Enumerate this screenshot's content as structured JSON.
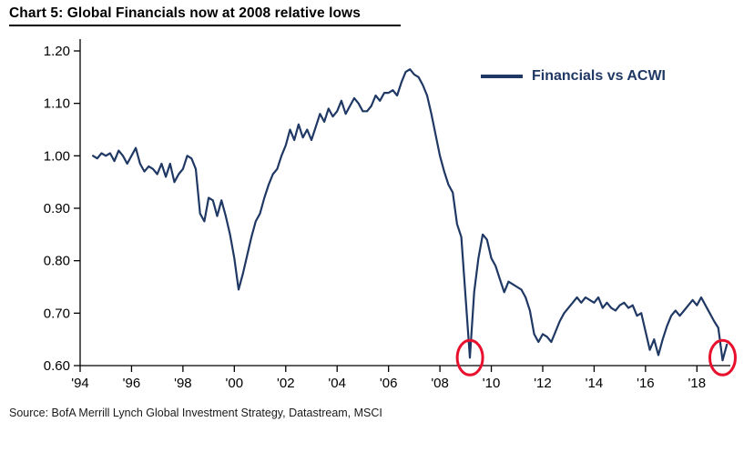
{
  "chart_data": {
    "type": "line",
    "title": "Chart 5: Global Financials now at 2008 relative lows",
    "source": "Source:  BofA Merrill Lynch Global Investment Strategy, Datastream, MSCI",
    "grid": false,
    "legend_position": "upper-right",
    "xlim": [
      1994,
      2019.3
    ],
    "ylim": [
      0.6,
      1.2
    ],
    "yticks": [
      0.6,
      0.7,
      0.8,
      0.9,
      1.0,
      1.1,
      1.2
    ],
    "ytick_labels": [
      "0.60",
      "0.70",
      "0.80",
      "0.90",
      "1.00",
      "1.10",
      "1.20"
    ],
    "xticks": [
      1994,
      1996,
      1998,
      2000,
      2002,
      2004,
      2006,
      2008,
      2010,
      2012,
      2014,
      2016,
      2018
    ],
    "xtick_labels": [
      "'94",
      "'96",
      "'98",
      "'00",
      "'02",
      "'04",
      "'06",
      "'08",
      "'10",
      "'12",
      "'14",
      "'16",
      "'18"
    ],
    "x_start": 1994.5,
    "x_step": 0.1666667,
    "series": [
      {
        "name": "Financials vs ACWI",
        "color": "#1f3864",
        "values": [
          1.0,
          0.995,
          1.005,
          1.0,
          1.005,
          0.99,
          1.01,
          1.0,
          0.985,
          1.0,
          1.015,
          0.985,
          0.97,
          0.98,
          0.975,
          0.965,
          0.985,
          0.96,
          0.985,
          0.95,
          0.965,
          0.975,
          1.0,
          0.995,
          0.975,
          0.89,
          0.875,
          0.92,
          0.915,
          0.885,
          0.915,
          0.885,
          0.85,
          0.805,
          0.745,
          0.775,
          0.81,
          0.845,
          0.875,
          0.89,
          0.92,
          0.945,
          0.965,
          0.975,
          1.0,
          1.02,
          1.05,
          1.03,
          1.06,
          1.035,
          1.05,
          1.03,
          1.055,
          1.08,
          1.065,
          1.09,
          1.075,
          1.085,
          1.105,
          1.08,
          1.095,
          1.11,
          1.1,
          1.085,
          1.085,
          1.095,
          1.115,
          1.105,
          1.12,
          1.12,
          1.125,
          1.115,
          1.14,
          1.16,
          1.165,
          1.155,
          1.15,
          1.135,
          1.115,
          1.08,
          1.04,
          1.0,
          0.97,
          0.945,
          0.93,
          0.87,
          0.845,
          0.73,
          0.615,
          0.74,
          0.805,
          0.85,
          0.84,
          0.805,
          0.79,
          0.765,
          0.74,
          0.76,
          0.755,
          0.75,
          0.745,
          0.73,
          0.705,
          0.66,
          0.645,
          0.66,
          0.655,
          0.645,
          0.665,
          0.685,
          0.7,
          0.71,
          0.72,
          0.73,
          0.72,
          0.73,
          0.725,
          0.72,
          0.73,
          0.71,
          0.72,
          0.71,
          0.705,
          0.715,
          0.72,
          0.71,
          0.715,
          0.695,
          0.7,
          0.665,
          0.63,
          0.65,
          0.62,
          0.65,
          0.675,
          0.695,
          0.705,
          0.695,
          0.705,
          0.715,
          0.725,
          0.715,
          0.73,
          0.715,
          0.7,
          0.685,
          0.672,
          0.61,
          0.64
        ]
      }
    ],
    "annotations": [
      {
        "type": "circle",
        "x": 2009.17,
        "y": 0.615,
        "color": "#e8112d"
      },
      {
        "type": "circle",
        "x": 2019.0,
        "y": 0.615,
        "color": "#e8112d"
      }
    ]
  }
}
